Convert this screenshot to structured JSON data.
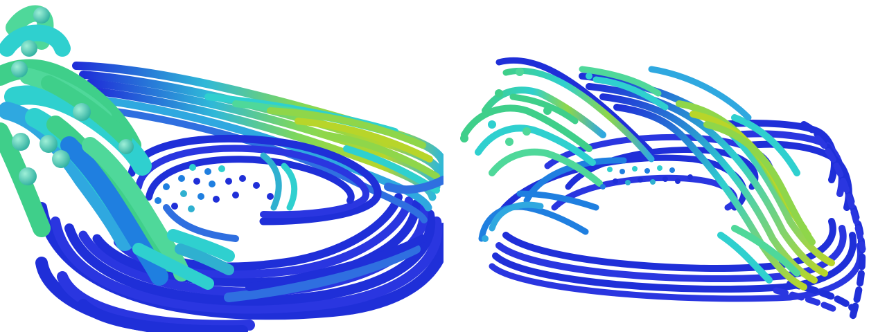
{
  "scene": {
    "panels": [
      {
        "name": "view-close-up"
      },
      {
        "name": "view-overview"
      }
    ],
    "colormap": {
      "low": "#1f2fd8",
      "mid_low": "#1f7fe0",
      "mid": "#2fd0cf",
      "mid_high": "#3fcf8a",
      "high": "#b8d52a"
    }
  }
}
